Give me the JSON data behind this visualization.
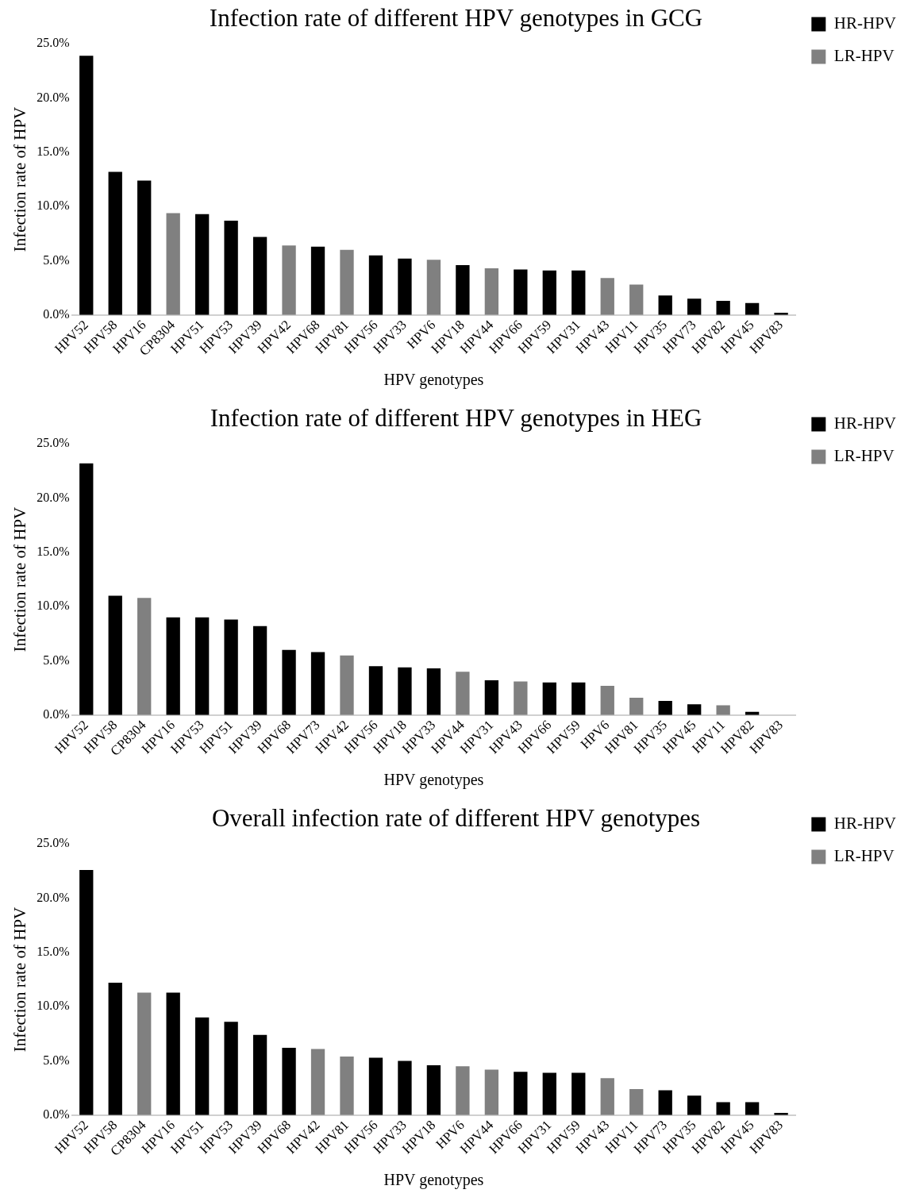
{
  "chart_data": [
    {
      "type": "bar",
      "title": "Infection rate of different HPV genotypes in GCG",
      "xlabel": "HPV genotypes",
      "ylabel": "Infection rate of HPV",
      "legend": "top right",
      "grid": false,
      "categories": [
        "HPV52",
        "HPV58",
        "HPV16",
        "CP8304",
        "HPV51",
        "HPV53",
        "HPV39",
        "HPV42",
        "HPV68",
        "HPV81",
        "HPV56",
        "HPV33",
        "HPV6",
        "HPV18",
        "HPV44",
        "HPV66",
        "HPV59",
        "HPV31",
        "HPV43",
        "HPV11",
        "HPV35",
        "HPV73",
        "HPV82",
        "HPV45",
        "HPV83"
      ],
      "ylim": [
        0,
        25
      ],
      "yticks": [
        {
          "value": 0,
          "label": "0.0%"
        },
        {
          "value": 5,
          "label": "5.0%"
        },
        {
          "value": 10,
          "label": "10.0%"
        },
        {
          "value": 15,
          "label": "15.0%"
        },
        {
          "value": 20,
          "label": "20.0%"
        },
        {
          "value": 25,
          "label": "25.0%"
        }
      ],
      "series": [
        {
          "name": "HR-HPV",
          "color": "#000000",
          "values": [
            23.9,
            13.2,
            12.4,
            null,
            9.3,
            8.7,
            7.2,
            null,
            6.3,
            null,
            5.5,
            5.2,
            null,
            4.6,
            null,
            4.2,
            4.1,
            4.1,
            null,
            null,
            1.8,
            1.5,
            1.3,
            1.1,
            0.2
          ]
        },
        {
          "name": "LR-HPV",
          "color": "#808080",
          "values": [
            null,
            null,
            null,
            9.4,
            null,
            null,
            null,
            6.4,
            null,
            6.0,
            null,
            null,
            5.1,
            null,
            4.3,
            null,
            null,
            null,
            3.4,
            2.8,
            null,
            null,
            null,
            null,
            null
          ]
        }
      ]
    },
    {
      "type": "bar",
      "title": "Infection rate of different HPV genotypes in HEG",
      "xlabel": "HPV genotypes",
      "ylabel": "Infection rate of HPV",
      "legend": "top right",
      "grid": false,
      "categories": [
        "HPV52",
        "HPV58",
        "CP8304",
        "HPV16",
        "HPV53",
        "HPV51",
        "HPV39",
        "HPV68",
        "HPV73",
        "HPV42",
        "HPV56",
        "HPV18",
        "HPV33",
        "HPV44",
        "HPV31",
        "HPV43",
        "HPV66",
        "HPV59",
        "HPV6",
        "HPV81",
        "HPV35",
        "HPV45",
        "HPV11",
        "HPV82",
        "HPV83"
      ],
      "ylim": [
        0,
        25
      ],
      "yticks": [
        {
          "value": 0,
          "label": "0.0%"
        },
        {
          "value": 5,
          "label": "5.0%"
        },
        {
          "value": 10,
          "label": "10.0%"
        },
        {
          "value": 15,
          "label": "15.0%"
        },
        {
          "value": 20,
          "label": "20.0%"
        },
        {
          "value": 25,
          "label": "25.0%"
        }
      ],
      "series": [
        {
          "name": "HR-HPV",
          "color": "#000000",
          "values": [
            23.2,
            11.0,
            null,
            9.0,
            9.0,
            8.8,
            8.2,
            6.0,
            5.8,
            null,
            4.5,
            4.4,
            4.3,
            null,
            3.2,
            null,
            3.0,
            3.0,
            null,
            null,
            1.3,
            1.0,
            null,
            0.3,
            0
          ]
        },
        {
          "name": "LR-HPV",
          "color": "#808080",
          "values": [
            null,
            null,
            10.8,
            null,
            null,
            null,
            null,
            null,
            null,
            5.5,
            null,
            null,
            null,
            4.0,
            null,
            3.1,
            null,
            null,
            2.7,
            1.6,
            null,
            null,
            0.9,
            null,
            null
          ]
        }
      ]
    },
    {
      "type": "bar",
      "title": "Overall infection rate of different HPV genotypes",
      "xlabel": "HPV genotypes",
      "ylabel": "Infection rate of HPV",
      "legend": "top right",
      "grid": false,
      "categories": [
        "HPV52",
        "HPV58",
        "CP8304",
        "HPV16",
        "HPV51",
        "HPV53",
        "HPV39",
        "HPV68",
        "HPV42",
        "HPV81",
        "HPV56",
        "HPV33",
        "HPV18",
        "HPV6",
        "HPV44",
        "HPV66",
        "HPV31",
        "HPV59",
        "HPV43",
        "HPV11",
        "HPV73",
        "HPV35",
        "HPV82",
        "HPV45",
        "HPV83"
      ],
      "ylim": [
        0,
        25
      ],
      "yticks": [
        {
          "value": 0,
          "label": "0.0%"
        },
        {
          "value": 5,
          "label": "5.0%"
        },
        {
          "value": 10,
          "label": "10.0%"
        },
        {
          "value": 15,
          "label": "15.0%"
        },
        {
          "value": 20,
          "label": "20.0%"
        },
        {
          "value": 25,
          "label": "25.0%"
        }
      ],
      "series": [
        {
          "name": "HR-HPV",
          "color": "#000000",
          "values": [
            22.6,
            12.2,
            null,
            11.3,
            9.0,
            8.6,
            7.4,
            6.2,
            null,
            null,
            5.3,
            5.0,
            4.6,
            null,
            null,
            4.0,
            3.9,
            3.9,
            null,
            null,
            2.3,
            1.8,
            1.2,
            1.2,
            0.2
          ]
        },
        {
          "name": "LR-HPV",
          "color": "#808080",
          "values": [
            null,
            null,
            11.3,
            null,
            null,
            null,
            null,
            null,
            6.1,
            5.4,
            null,
            null,
            null,
            4.5,
            4.2,
            null,
            null,
            null,
            3.4,
            2.4,
            null,
            null,
            null,
            null,
            null
          ]
        }
      ]
    }
  ]
}
